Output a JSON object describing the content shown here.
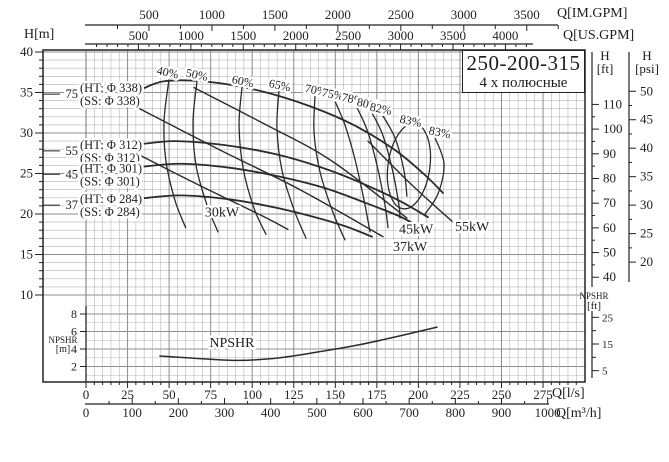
{
  "title_box": {
    "model": "250-200-315",
    "poles": "4 х полюсные"
  },
  "colors": {
    "curve": "#2b2b2b",
    "grid_minor": "#b5b5b5",
    "grid_major": "#8d8d8d",
    "axis": "#222222",
    "background": "#ffffff"
  },
  "axes": {
    "im_gpm": {
      "label": "Q[IM.GPM]",
      "ticks": [
        500,
        1000,
        1500,
        2000,
        2500,
        3000,
        3500
      ]
    },
    "us_gpm": {
      "label": "Q[US.GPM]",
      "ticks": [
        500,
        1000,
        1500,
        2000,
        2500,
        3000,
        3500,
        4000
      ]
    },
    "lps": {
      "label": "Q[l/s]",
      "ticks": [
        0,
        25,
        50,
        75,
        100,
        125,
        150,
        175,
        200,
        225,
        250,
        275
      ]
    },
    "m3h": {
      "label": "Q[m³/h]",
      "ticks": [
        0,
        100,
        200,
        300,
        400,
        500,
        600,
        700,
        800,
        900,
        1000
      ]
    },
    "h_m": {
      "label": "H[m]",
      "ticks": [
        10,
        15,
        20,
        25,
        30,
        35,
        40
      ]
    },
    "h_ft": {
      "label_1": "H",
      "label_2": "[ft]",
      "ticks": [
        40,
        50,
        60,
        70,
        80,
        90,
        100,
        110
      ]
    },
    "h_psi": {
      "label_1": "H",
      "label_2": "[psi]",
      "ticks": [
        20,
        25,
        30,
        35,
        40,
        45,
        50
      ]
    },
    "npshr_m": {
      "label_1": "NPSHR",
      "label_2": "[m]",
      "ticks": [
        2,
        4,
        6,
        8
      ]
    },
    "npshr_ft": {
      "label_1": "NPSHR",
      "label_2": "[ft]",
      "ticks": [
        5,
        15,
        25
      ]
    }
  },
  "chart_data": {
    "type": "line",
    "title": "250-200-315 4 х полюсные",
    "xlabel": "Q [l/s] / Q [m³/h] / Q [US.GPM] / Q [IM.GPM]",
    "ylabel": "H [m] / H [ft] / H [psi], NPSHR [m] / NPSHR [ft]",
    "x_range_lps": [
      0,
      300
    ],
    "h_range_m": [
      0,
      40
    ],
    "npshr_range_m": [
      0,
      9
    ],
    "grid": "on",
    "head_curves": [
      {
        "name": "Φ338",
        "motor_kw": "75",
        "ht": "(HT: Φ 338)",
        "ss": "(SS: Φ 338)",
        "label_h": 34.8,
        "points": [
          [
            32.5,
            35.3
          ],
          [
            47.5,
            36.4
          ],
          [
            74.6,
            36.3
          ],
          [
            104.7,
            35.2
          ],
          [
            134.8,
            33.3
          ],
          [
            161.9,
            30.9
          ],
          [
            185.9,
            27.9
          ],
          [
            204,
            24.8
          ],
          [
            214.8,
            22.6
          ]
        ]
      },
      {
        "name": "Φ312",
        "motor_kw": "55",
        "ht": "(HT: Φ 312)",
        "ss": "(SS: Φ 312)",
        "label_h": 27.8,
        "points": [
          [
            32.5,
            28.6
          ],
          [
            53.6,
            29.0
          ],
          [
            83.6,
            28.5
          ],
          [
            113.7,
            27.4
          ],
          [
            140.8,
            25.8
          ],
          [
            164.9,
            23.9
          ],
          [
            188.9,
            21.6
          ],
          [
            205.8,
            19.6
          ]
        ]
      },
      {
        "name": "Φ301",
        "motor_kw": "45",
        "ht": "(HT: Φ 301)",
        "ss": "(SS: Φ 301)",
        "label_h": 24.9,
        "points": [
          [
            32.5,
            25.8
          ],
          [
            56.6,
            26.2
          ],
          [
            86.7,
            25.7
          ],
          [
            116.8,
            24.6
          ],
          [
            143.8,
            23.2
          ],
          [
            167.9,
            21.4
          ],
          [
            187.7,
            19.8
          ],
          [
            198,
            18.7
          ]
        ]
      },
      {
        "name": "Φ284",
        "motor_kw": "37",
        "ht": "(HT: Φ 284)",
        "ss": "(SS: Φ 284)",
        "label_h": 21.1,
        "points": [
          [
            32.5,
            21.9
          ],
          [
            56.6,
            22.3
          ],
          [
            86.7,
            21.8
          ],
          [
            113.7,
            20.8
          ],
          [
            137.8,
            19.6
          ],
          [
            155.8,
            18.5
          ],
          [
            172.1,
            17.2
          ]
        ]
      }
    ],
    "efficiency_contours": [
      {
        "label": "40%",
        "label_at": [
          48.7,
          37.5
        ],
        "points": [
          [
            50,
            36.7
          ],
          [
            47,
            31.6
          ],
          [
            48,
            26.7
          ],
          [
            53.5,
            21.7
          ],
          [
            60,
            18.3
          ]
        ]
      },
      {
        "label": "50%",
        "label_at": [
          66.2,
          37.2
        ],
        "points": [
          [
            66.8,
            36.4
          ],
          [
            64.4,
            31.4
          ],
          [
            66.2,
            26.0
          ],
          [
            72.8,
            21.1
          ],
          [
            79.4,
            17.8
          ]
        ]
      },
      {
        "label": "60%",
        "label_at": [
          93.9,
          36.4
        ],
        "points": [
          [
            93.9,
            35.7
          ],
          [
            92.1,
            31.0
          ],
          [
            94.5,
            25.7
          ],
          [
            101.1,
            20.7
          ],
          [
            108.3,
            17.5
          ]
        ]
      },
      {
        "label": "65%",
        "label_at": [
          116.1,
          35.9
        ],
        "points": [
          [
            116.1,
            35.2
          ],
          [
            114.9,
            30.6
          ],
          [
            117.9,
            25.4
          ],
          [
            125.2,
            20.5
          ],
          [
            132.4,
            17.0
          ]
        ]
      },
      {
        "label": "70%",
        "label_at": [
          137.8,
          35.3
        ],
        "points": [
          [
            137.8,
            34.6
          ],
          [
            137.2,
            30.1
          ],
          [
            140.8,
            25.2
          ],
          [
            148.6,
            20.2
          ],
          [
            155.8,
            16.8
          ]
        ]
      },
      {
        "label": "75%",
        "label_at": [
          148.0,
          34.8
        ],
        "points": [
          [
            149.2,
            34.2
          ],
          [
            155.8,
            31.0
          ],
          [
            161.9,
            26.7
          ],
          [
            167.3,
            21.7
          ],
          [
            170.9,
            17.8
          ]
        ]
      },
      {
        "label": "78%",
        "label_at": [
          160.0,
          34.2
        ],
        "points": [
          [
            161.9,
            33.6
          ],
          [
            169.1,
            30.4
          ],
          [
            175.1,
            26.0
          ],
          [
            179.9,
            21.1
          ],
          [
            181.7,
            18.3
          ]
        ]
      },
      {
        "label": "80%",
        "label_at": [
          169.1,
          33.6
        ],
        "points": [
          [
            170.3,
            33.1
          ],
          [
            178.1,
            30.0
          ],
          [
            184.1,
            25.7
          ],
          [
            188.3,
            21.1
          ],
          [
            188.9,
            19.5
          ]
        ]
      },
      {
        "label": "82%",
        "label_at": [
          176.9,
          33.0
        ],
        "points": [
          [
            177.5,
            32.5
          ],
          [
            185.9,
            29.4
          ],
          [
            191.3,
            25.4
          ],
          [
            193.1,
            22.2
          ]
        ]
      },
      {
        "label": "83%",
        "label_at": [
          212.4,
          30.1
        ],
        "points": [
          [
            210,
            29.4
          ],
          [
            215.4,
            26.2
          ],
          [
            211.8,
            22.5
          ],
          [
            204,
            20.0
          ]
        ]
      }
    ],
    "best_efficiency_ellipse": {
      "label": "83%",
      "label_at": [
        194.9,
        31.5
      ],
      "center": [
        194.3,
        25.9
      ],
      "rq": 12.6,
      "rh": 5.3,
      "tilt_deg": 8
    },
    "power_lines": [
      {
        "label": "30kW",
        "label_at": [
          81.8,
          20.2
        ],
        "points": [
          [
            30.1,
            27.5
          ],
          [
            68.6,
            23.5
          ],
          [
            104.7,
            19.9
          ],
          [
            121.5,
            18.1
          ]
        ]
      },
      {
        "label": "37kW",
        "label_at": [
          195.0,
          15.9
        ],
        "points": [
          [
            31.3,
            33.1
          ],
          [
            80.6,
            27.9
          ],
          [
            128.8,
            23.0
          ],
          [
            178.7,
            17.2
          ]
        ]
      },
      {
        "label": "45kW",
        "label_at": [
          198.6,
          18.1
        ],
        "points": [
          [
            65.0,
            35.6
          ],
          [
            104.7,
            31.4
          ],
          [
            146.8,
            26.7
          ],
          [
            193.1,
            19.5
          ]
        ]
      },
      {
        "label": "55kW",
        "label_at": [
          232.3,
          18.4
        ],
        "points": [
          [
            169.7,
            29.0
          ],
          [
            195.0,
            23.8
          ],
          [
            220.2,
            19.1
          ]
        ]
      }
    ],
    "npshr_curve": {
      "label": "NPSHR",
      "label_at": [
        87.8,
        4.7
      ],
      "points": [
        [
          44.5,
          3.2
        ],
        [
          68.6,
          2.9
        ],
        [
          92.7,
          2.7
        ],
        [
          116.8,
          3.0
        ],
        [
          140.8,
          3.7
        ],
        [
          164.9,
          4.5
        ],
        [
          188.9,
          5.5
        ],
        [
          211.2,
          6.5
        ]
      ]
    }
  }
}
